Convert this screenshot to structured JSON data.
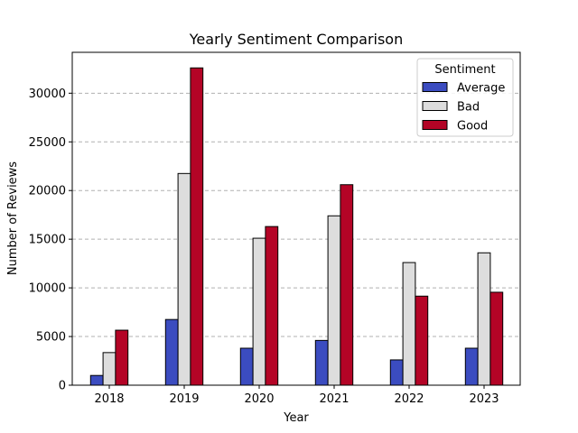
{
  "chart_data": {
    "type": "bar",
    "title": "Yearly Sentiment Comparison",
    "xlabel": "Year",
    "ylabel": "Number of Reviews",
    "categories": [
      "2018",
      "2019",
      "2020",
      "2021",
      "2022",
      "2023"
    ],
    "ylim": [
      0,
      34200
    ],
    "yticks": [
      0,
      5000,
      10000,
      15000,
      20000,
      25000,
      30000
    ],
    "grid": "y-dashed",
    "legend": {
      "title": "Sentiment",
      "placement": "top-right"
    },
    "series": [
      {
        "name": "Average",
        "color": "#3b4cc0",
        "values": [
          1000,
          6750,
          3800,
          4600,
          2600,
          3800
        ]
      },
      {
        "name": "Bad",
        "color": "#dddddd",
        "values": [
          3350,
          21750,
          15100,
          17400,
          12600,
          13600
        ]
      },
      {
        "name": "Good",
        "color": "#b40426",
        "values": [
          5650,
          32600,
          16300,
          20600,
          9150,
          9550
        ]
      }
    ]
  }
}
